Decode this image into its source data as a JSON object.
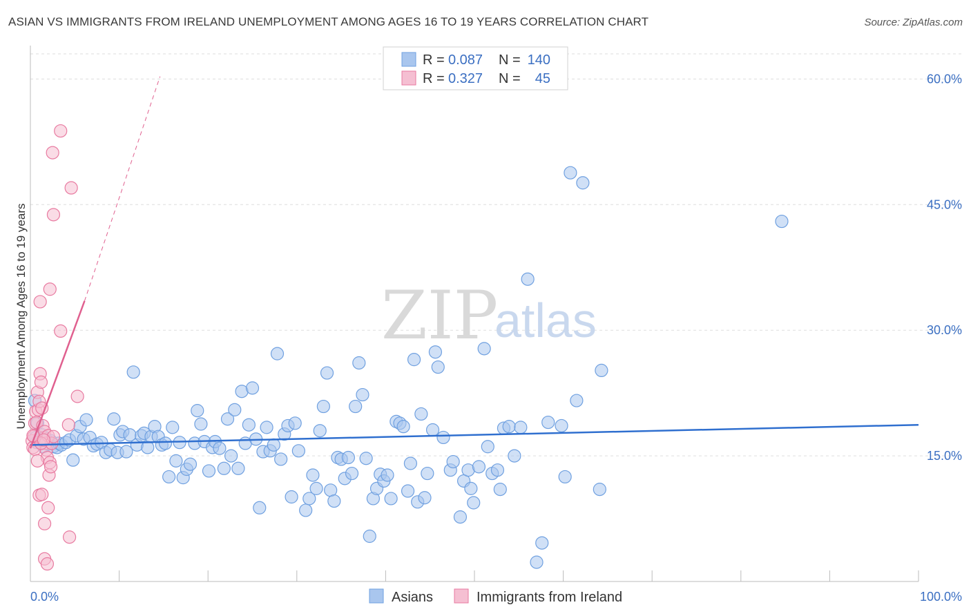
{
  "title": "ASIAN VS IMMIGRANTS FROM IRELAND UNEMPLOYMENT AMONG AGES 16 TO 19 YEARS CORRELATION CHART",
  "source": "Source: ZipAtlas.com",
  "watermark": {
    "zip": "ZIP",
    "atlas": "atlas"
  },
  "colors": {
    "asian": "#6fa0e0",
    "asian_fill": "#a9c6ee",
    "ireland": "#e87aa0",
    "ireland_fill": "#f5bfd2",
    "asian_line": "#2f6fcf",
    "ireland_line": "#e0608f",
    "tick_text": "#3b6fc2"
  },
  "legend": {
    "rows": [
      {
        "r_label": "R = ",
        "r_value": "0.087",
        "n_label": "N = ",
        "n_value": "140"
      },
      {
        "r_label": "R = ",
        "r_value": "0.327",
        "n_label": "N = ",
        "n_value": "45"
      }
    ]
  },
  "bottom_legend": [
    "Asians",
    "Immigrants from Ireland"
  ],
  "chart_data": {
    "type": "scatter",
    "title": "ASIAN VS IMMIGRANTS FROM IRELAND UNEMPLOYMENT AMONG AGES 16 TO 19 YEARS CORRELATION CHART",
    "xlabel": "",
    "ylabel": "Unemployment Among Ages 16 to 19 years",
    "xlim": [
      0,
      100
    ],
    "ylim": [
      0,
      63
    ],
    "x_tick_labels": [
      "0.0%",
      "100.0%"
    ],
    "y_ticks": [
      15,
      30,
      45,
      60
    ],
    "y_tick_labels": [
      "15.0%",
      "30.0%",
      "45.0%",
      "60.0%"
    ],
    "grid": true,
    "legend_position": "top-center",
    "series": [
      {
        "name": "Asians",
        "R": 0.087,
        "N": 140,
        "trend": {
          "x": [
            0,
            100
          ],
          "y": [
            16.3,
            18.7
          ]
        },
        "points": [
          [
            0.5,
            21.6
          ],
          [
            0.6,
            17.2
          ],
          [
            0.7,
            16.6
          ],
          [
            0.8,
            18.9
          ],
          [
            1.0,
            16.9
          ],
          [
            1.2,
            16.5
          ],
          [
            1.3,
            17.5
          ],
          [
            1.5,
            16.1
          ],
          [
            1.6,
            17.2
          ],
          [
            1.8,
            16.9
          ],
          [
            2.0,
            16.4
          ],
          [
            2.3,
            16.8
          ],
          [
            2.6,
            16.1
          ],
          [
            3.0,
            16.0
          ],
          [
            3.2,
            16.5
          ],
          [
            3.5,
            16.3
          ],
          [
            4.0,
            16.6
          ],
          [
            4.4,
            16.9
          ],
          [
            4.8,
            14.5
          ],
          [
            5.2,
            17.4
          ],
          [
            5.6,
            18.5
          ],
          [
            6.0,
            17.0
          ],
          [
            6.3,
            19.3
          ],
          [
            6.7,
            17.2
          ],
          [
            7.1,
            16.2
          ],
          [
            7.5,
            16.4
          ],
          [
            8.0,
            16.6
          ],
          [
            8.5,
            15.4
          ],
          [
            9.0,
            15.7
          ],
          [
            9.4,
            19.4
          ],
          [
            9.8,
            15.4
          ],
          [
            10.1,
            17.5
          ],
          [
            10.4,
            17.9
          ],
          [
            10.8,
            15.5
          ],
          [
            11.2,
            17.5
          ],
          [
            11.6,
            25.0
          ],
          [
            12.0,
            16.3
          ],
          [
            12.5,
            17.4
          ],
          [
            12.8,
            17.7
          ],
          [
            13.2,
            16.0
          ],
          [
            13.6,
            17.3
          ],
          [
            14.0,
            18.5
          ],
          [
            14.4,
            17.3
          ],
          [
            14.8,
            16.3
          ],
          [
            15.2,
            16.5
          ],
          [
            15.6,
            12.5
          ],
          [
            16.0,
            18.4
          ],
          [
            16.4,
            14.4
          ],
          [
            16.8,
            16.6
          ],
          [
            17.2,
            12.4
          ],
          [
            17.6,
            13.4
          ],
          [
            18.0,
            14.0
          ],
          [
            18.5,
            16.5
          ],
          [
            18.8,
            20.4
          ],
          [
            19.2,
            18.8
          ],
          [
            19.6,
            16.7
          ],
          [
            20.1,
            13.2
          ],
          [
            20.5,
            16.0
          ],
          [
            20.8,
            16.7
          ],
          [
            21.3,
            15.9
          ],
          [
            21.8,
            13.5
          ],
          [
            22.2,
            19.4
          ],
          [
            22.6,
            15.0
          ],
          [
            23.0,
            20.5
          ],
          [
            23.4,
            13.5
          ],
          [
            23.8,
            22.7
          ],
          [
            24.2,
            16.5
          ],
          [
            24.6,
            18.7
          ],
          [
            25.0,
            23.1
          ],
          [
            25.4,
            17.0
          ],
          [
            25.8,
            8.8
          ],
          [
            26.2,
            15.5
          ],
          [
            26.6,
            18.4
          ],
          [
            27.0,
            15.6
          ],
          [
            27.4,
            16.3
          ],
          [
            27.8,
            27.2
          ],
          [
            28.2,
            14.6
          ],
          [
            28.6,
            17.6
          ],
          [
            29.0,
            18.6
          ],
          [
            29.4,
            10.1
          ],
          [
            29.8,
            18.9
          ],
          [
            30.2,
            15.6
          ],
          [
            31.0,
            8.5
          ],
          [
            31.4,
            9.9
          ],
          [
            31.8,
            12.7
          ],
          [
            32.2,
            11.1
          ],
          [
            32.6,
            18.0
          ],
          [
            33.0,
            20.9
          ],
          [
            33.4,
            24.9
          ],
          [
            33.8,
            10.9
          ],
          [
            34.2,
            9.6
          ],
          [
            34.6,
            14.8
          ],
          [
            35.0,
            14.6
          ],
          [
            35.4,
            12.3
          ],
          [
            35.8,
            14.8
          ],
          [
            36.2,
            12.9
          ],
          [
            36.6,
            20.9
          ],
          [
            37.0,
            26.1
          ],
          [
            37.4,
            22.3
          ],
          [
            37.8,
            14.7
          ],
          [
            38.2,
            5.4
          ],
          [
            38.6,
            9.9
          ],
          [
            39.0,
            11.1
          ],
          [
            39.4,
            12.8
          ],
          [
            39.8,
            12.0
          ],
          [
            40.2,
            12.7
          ],
          [
            40.6,
            9.9
          ],
          [
            41.2,
            19.1
          ],
          [
            41.6,
            18.9
          ],
          [
            42.0,
            18.5
          ],
          [
            42.5,
            10.8
          ],
          [
            42.8,
            14.1
          ],
          [
            43.2,
            26.5
          ],
          [
            43.6,
            9.5
          ],
          [
            44.0,
            20.0
          ],
          [
            44.4,
            10.0
          ],
          [
            44.7,
            12.9
          ],
          [
            45.3,
            18.1
          ],
          [
            45.6,
            27.4
          ],
          [
            45.9,
            25.6
          ],
          [
            46.5,
            17.2
          ],
          [
            47.3,
            13.3
          ],
          [
            47.6,
            14.3
          ],
          [
            48.4,
            7.7
          ],
          [
            48.8,
            12.0
          ],
          [
            49.3,
            13.3
          ],
          [
            49.6,
            11.1
          ],
          [
            49.9,
            9.4
          ],
          [
            50.5,
            13.7
          ],
          [
            51.1,
            27.8
          ],
          [
            51.5,
            16.1
          ],
          [
            52.0,
            12.9
          ],
          [
            52.6,
            13.3
          ],
          [
            52.9,
            11.0
          ],
          [
            53.3,
            18.3
          ],
          [
            53.9,
            18.5
          ],
          [
            54.5,
            15.0
          ],
          [
            56.0,
            36.1
          ],
          [
            57.6,
            4.6
          ],
          [
            58.3,
            19.0
          ],
          [
            60.2,
            12.5
          ],
          [
            59.8,
            18.6
          ],
          [
            61.5,
            21.6
          ],
          [
            64.3,
            25.2
          ],
          [
            64.1,
            11.0
          ],
          [
            84.6,
            43.0
          ],
          [
            60.8,
            48.8
          ],
          [
            62.2,
            47.6
          ],
          [
            55.2,
            18.4
          ],
          [
            57.0,
            2.3
          ]
        ]
      },
      {
        "name": "Immigrants from Ireland",
        "R": 0.327,
        "N": 45,
        "trend": {
          "x": [
            0,
            6.1
          ],
          "y": [
            15.9,
            33.5
          ],
          "dashed_to": {
            "x": 14.6,
            "y": 60.3
          }
        },
        "points": [
          [
            0.2,
            16.8
          ],
          [
            0.3,
            16.0
          ],
          [
            0.4,
            17.3
          ],
          [
            0.5,
            18.9
          ],
          [
            0.5,
            15.8
          ],
          [
            0.6,
            20.3
          ],
          [
            0.7,
            19.0
          ],
          [
            0.8,
            22.6
          ],
          [
            0.9,
            20.5
          ],
          [
            1.0,
            21.5
          ],
          [
            1.1,
            24.8
          ],
          [
            1.2,
            23.8
          ],
          [
            1.3,
            20.7
          ],
          [
            1.4,
            18.6
          ],
          [
            1.5,
            17.1
          ],
          [
            1.6,
            17.9
          ],
          [
            1.7,
            16.5
          ],
          [
            1.8,
            15.7
          ],
          [
            1.9,
            14.8
          ],
          [
            2.0,
            17.4
          ],
          [
            2.2,
            14.2
          ],
          [
            2.4,
            16.5
          ],
          [
            2.6,
            17.3
          ],
          [
            0.8,
            14.4
          ],
          [
            1.0,
            10.3
          ],
          [
            1.6,
            6.9
          ],
          [
            1.6,
            2.7
          ],
          [
            1.9,
            2.1
          ],
          [
            2.0,
            8.8
          ],
          [
            2.1,
            12.7
          ],
          [
            2.3,
            13.7
          ],
          [
            1.3,
            10.4
          ],
          [
            1.1,
            33.4
          ],
          [
            2.2,
            34.9
          ],
          [
            3.4,
            29.9
          ],
          [
            3.4,
            53.8
          ],
          [
            2.5,
            51.2
          ],
          [
            4.6,
            47.0
          ],
          [
            2.6,
            43.8
          ],
          [
            4.4,
            5.3
          ],
          [
            5.3,
            22.1
          ],
          [
            4.3,
            18.7
          ],
          [
            1.2,
            16.5
          ],
          [
            0.3,
            17.4
          ],
          [
            1.5,
            16.9
          ]
        ]
      }
    ]
  }
}
